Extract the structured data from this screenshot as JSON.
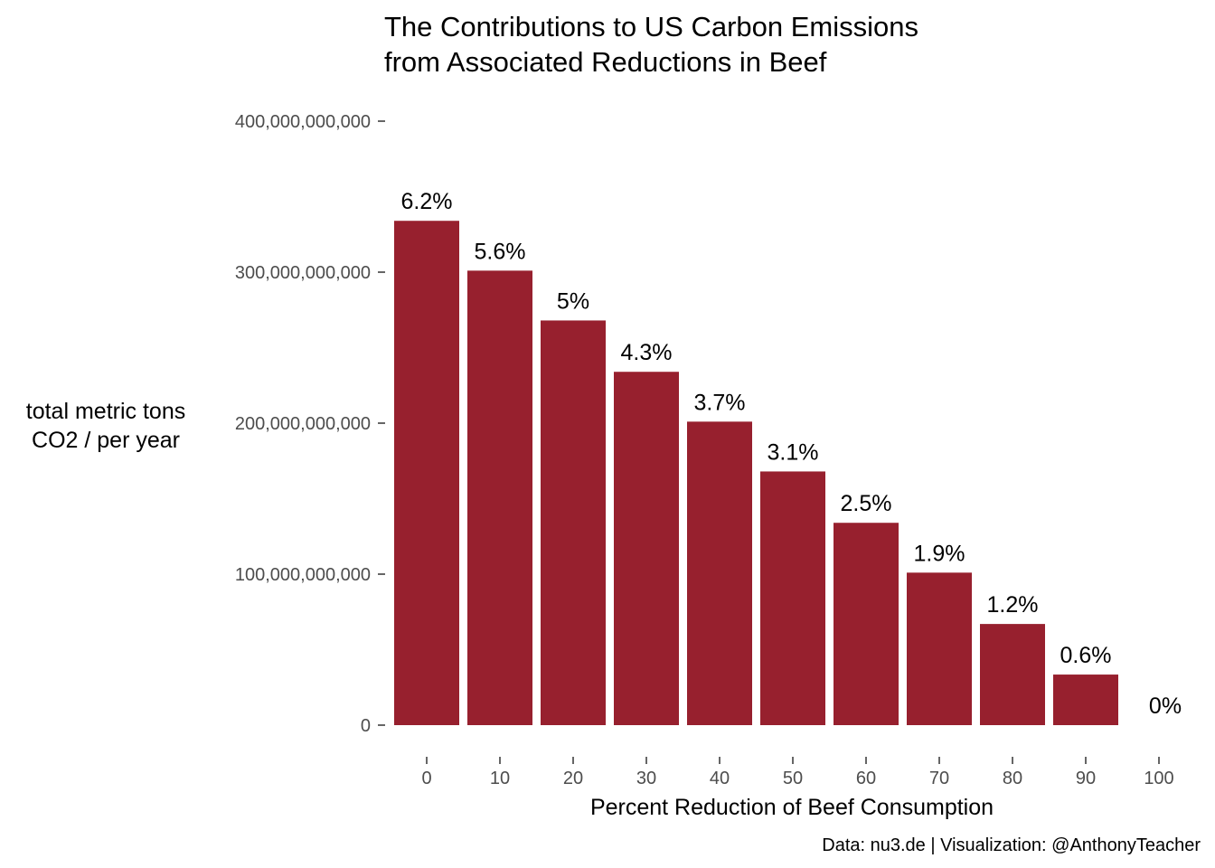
{
  "chart_data": {
    "type": "bar",
    "title": [
      "The Contributions to US Carbon Emissions",
      "from Associated Reductions in Beef"
    ],
    "xlabel": "Percent Reduction of Beef Consumption",
    "ylabel": [
      "total metric tons",
      "CO2 / per year"
    ],
    "caption": "Data: nu3.de | Visualization: @AnthonyTeacher",
    "categories": [
      "0",
      "10",
      "20",
      "30",
      "40",
      "50",
      "60",
      "70",
      "80",
      "90",
      "100"
    ],
    "values": [
      334000000000,
      301000000000,
      268000000000,
      234000000000,
      201000000000,
      168000000000,
      134000000000,
      101000000000,
      67000000000,
      33500000000,
      0
    ],
    "data_labels": [
      "6.2%",
      "5.6%",
      "5%",
      "4.3%",
      "3.7%",
      "3.1%",
      "2.5%",
      "1.9%",
      "1.2%",
      "0.6%",
      "0%"
    ],
    "y_ticks": [
      0,
      100000000000,
      200000000000,
      300000000000,
      400000000000
    ],
    "y_tick_labels": [
      "0",
      "100,000,000,000",
      "200,000,000,000",
      "300,000,000,000",
      "400,000,000,000"
    ],
    "ylim": [
      0,
      400000000000
    ],
    "grid": false,
    "legend": "none",
    "bar_color": "#97202E"
  }
}
